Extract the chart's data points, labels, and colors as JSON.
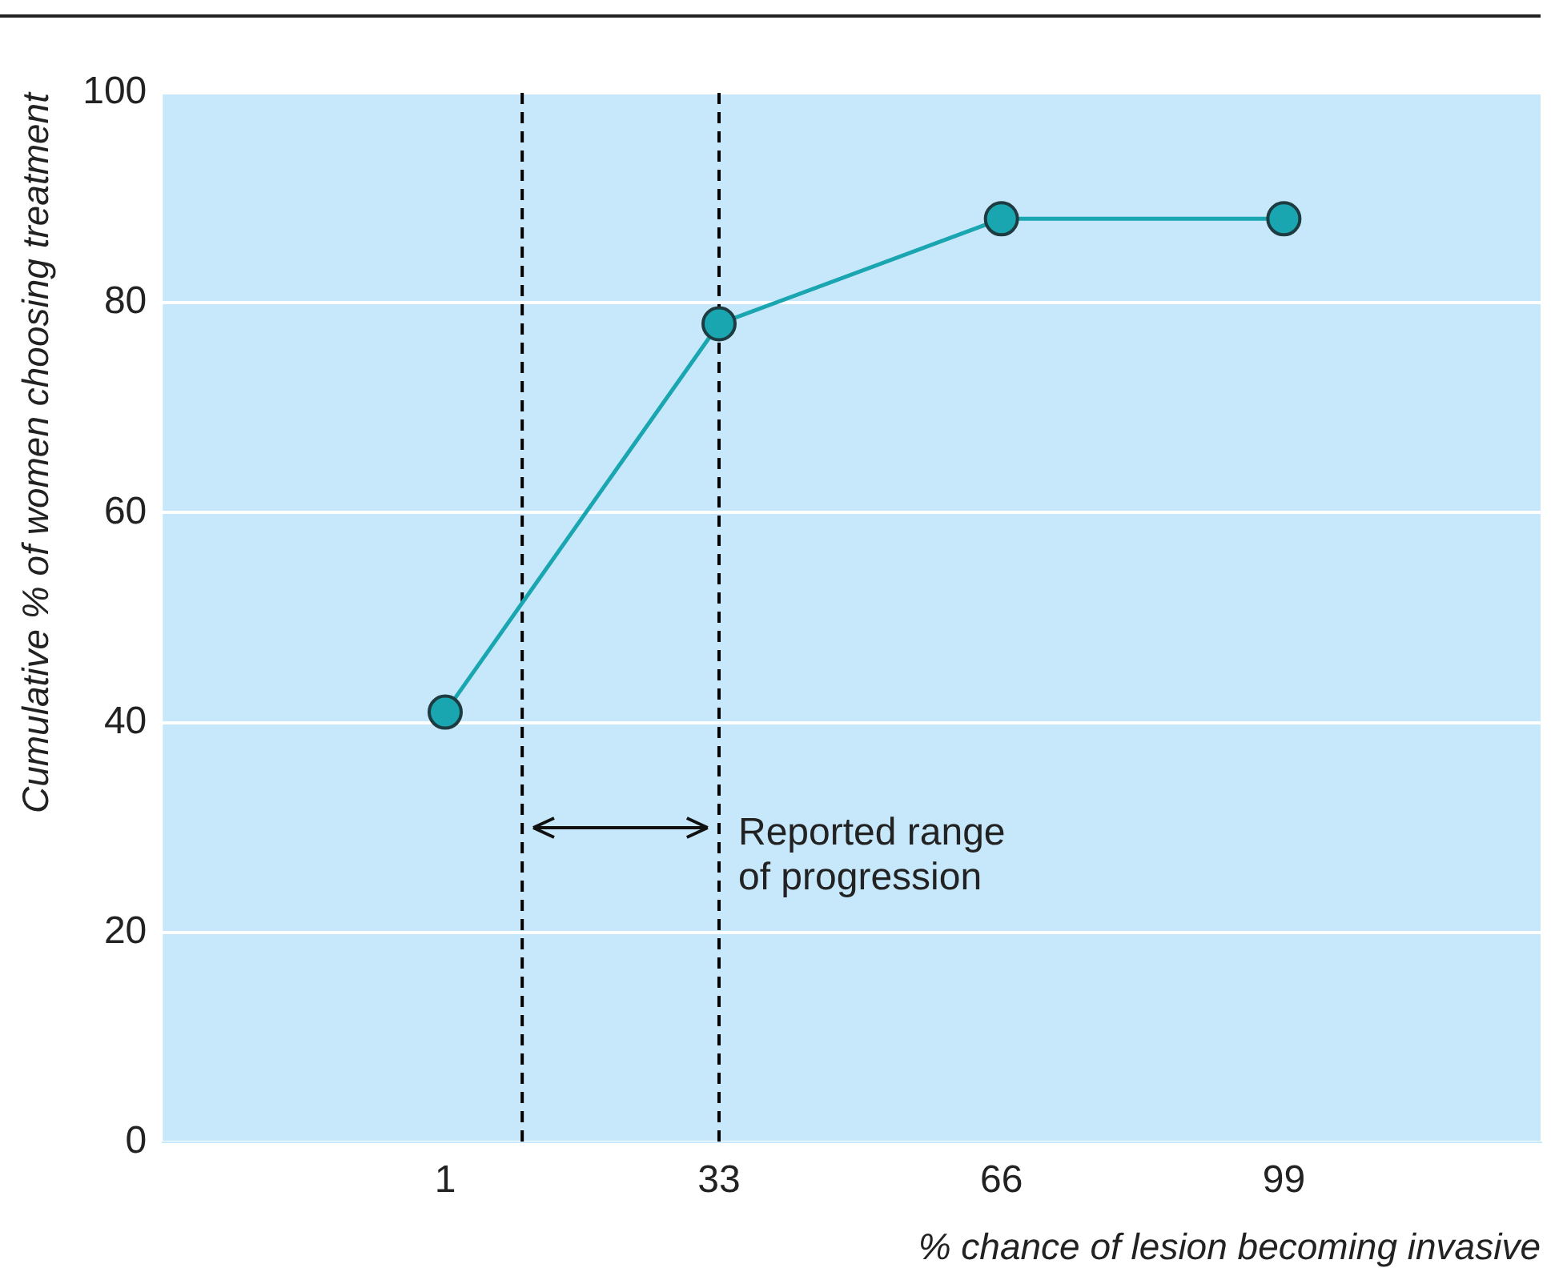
{
  "chart_data": {
    "type": "line",
    "xlabel": "% chance of lesion becoming invasive",
    "ylabel": "Cumulative % of women choosing treatment",
    "x": [
      1,
      33,
      66,
      99
    ],
    "series": [
      {
        "color": "#1aa6b0",
        "values": [
          41,
          78,
          88,
          88
        ]
      }
    ],
    "xlim": [
      -32,
      129
    ],
    "xticks": [
      1,
      33,
      66,
      99
    ],
    "ylim": [
      0,
      100
    ],
    "yticks": [
      0,
      20,
      40,
      60,
      80,
      100
    ],
    "grid": "y",
    "marker": "circle",
    "line_style": "solid",
    "legend": false,
    "ref_lines": [
      {
        "axis": "x",
        "value": 10,
        "label": null,
        "line_style": "dashed",
        "color": "#000000"
      },
      {
        "axis": "x",
        "value": 33,
        "label": null,
        "line_style": "dashed",
        "color": "#000000"
      }
    ],
    "annotations": [
      {
        "text": "Reported range of progression",
        "x": 33,
        "y": 30
      }
    ]
  }
}
